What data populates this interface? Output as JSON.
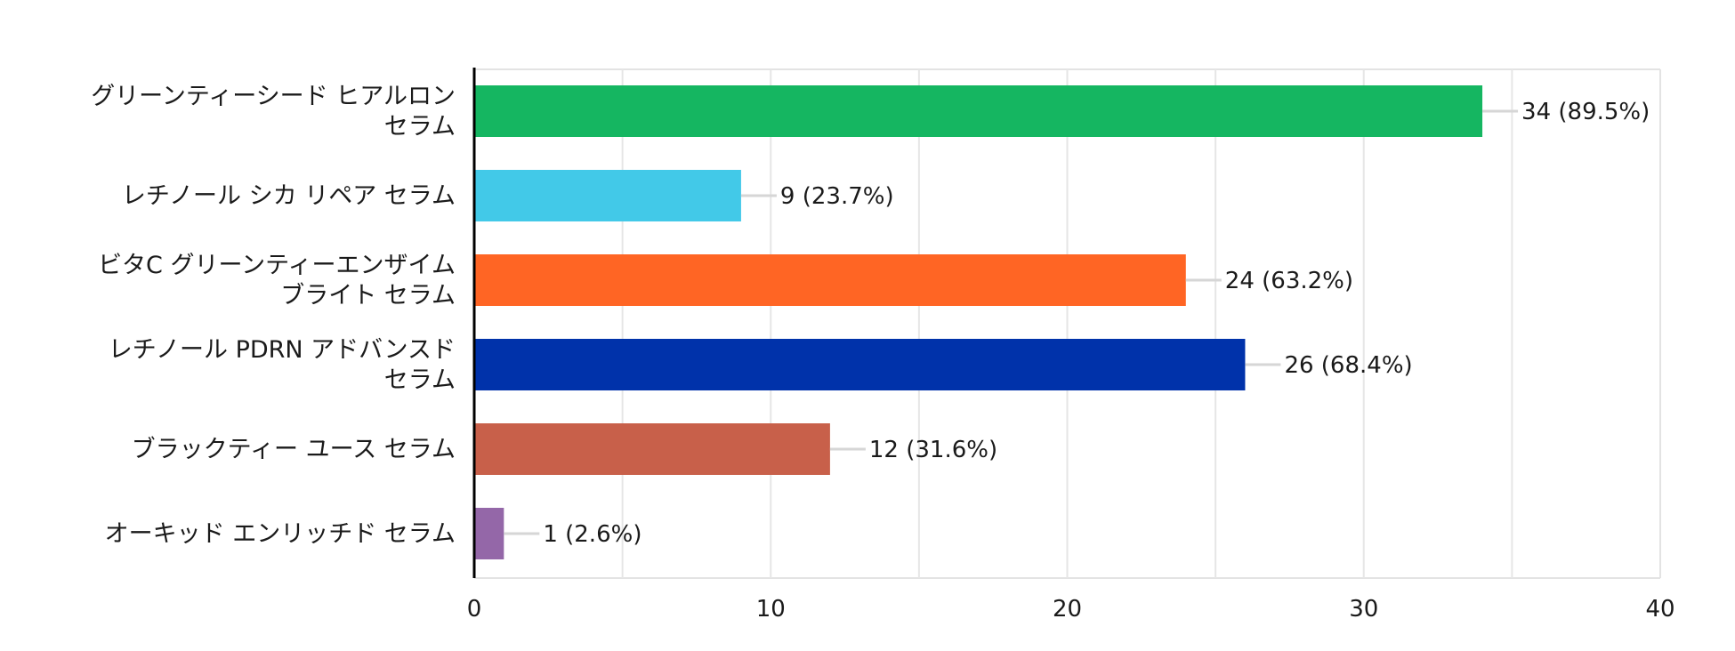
{
  "chart_data": {
    "type": "bar",
    "orientation": "horizontal",
    "title": "",
    "xlabel": "",
    "ylabel": "",
    "xlim": [
      0,
      40
    ],
    "x_ticks": [
      0,
      10,
      20,
      30,
      40
    ],
    "grid": true,
    "categories": [
      [
        "グリーンティーシード ヒアルロン",
        "セラム"
      ],
      [
        "レチノール シカ リペア セラム"
      ],
      [
        "ビタC グリーンティーエンザイム",
        "ブライト セラム"
      ],
      [
        "レチノール PDRN アドバンスド",
        "セラム"
      ],
      [
        "ブラックティー ユース セラム"
      ],
      [
        "オーキッド エンリッチド セラム"
      ]
    ],
    "values": [
      34,
      9,
      24,
      26,
      12,
      1
    ],
    "value_labels": [
      "34 (89.5%)",
      "9 (23.7%)",
      "24 (63.2%)",
      "26 (68.4%)",
      "12 (31.6%)",
      "1 (2.6%)"
    ],
    "colors": [
      "#15b661",
      "#42c9e8",
      "#ff6524",
      "#0032aa",
      "#c8604a",
      "#9467a8"
    ]
  }
}
